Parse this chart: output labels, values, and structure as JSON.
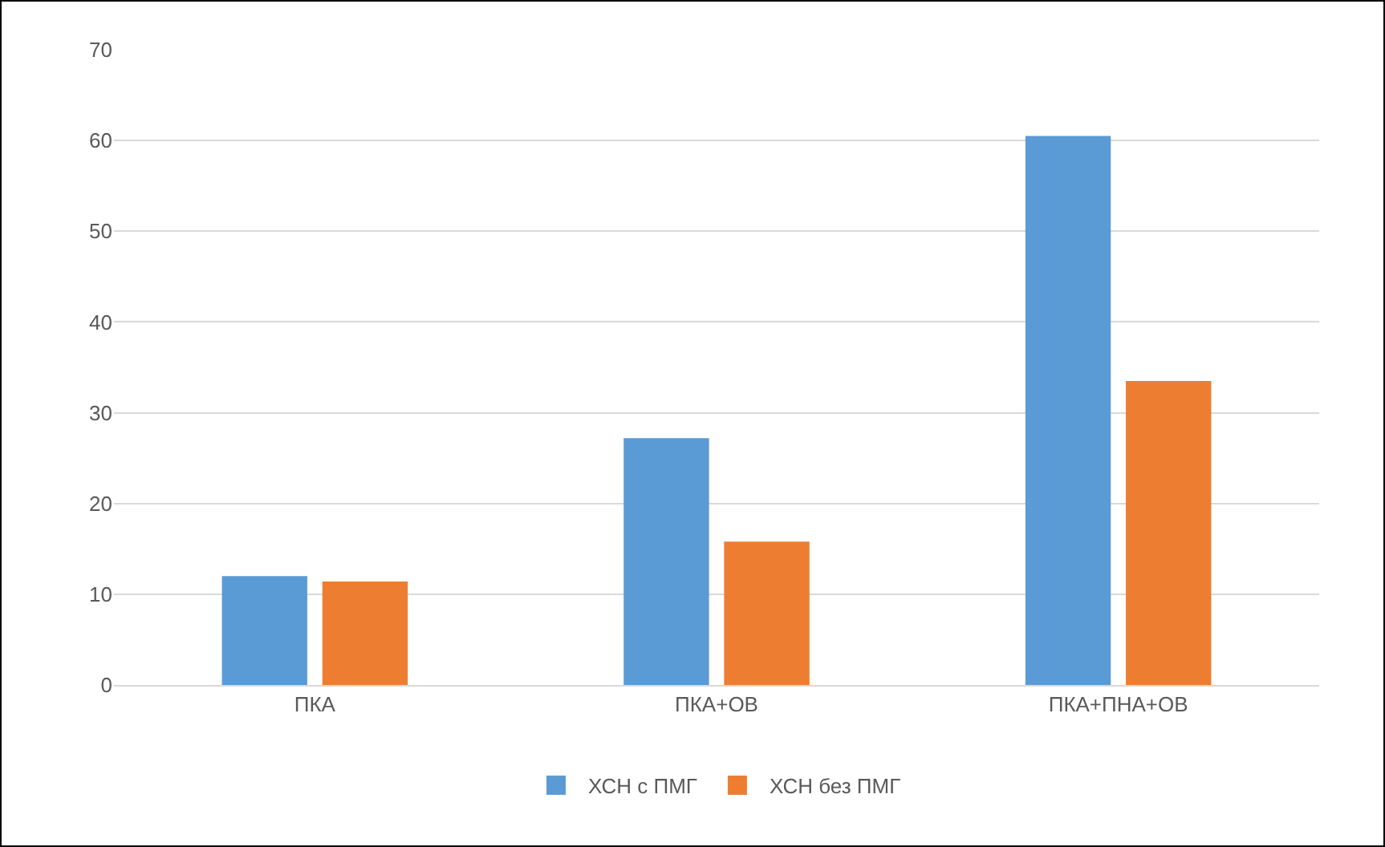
{
  "chart_data": {
    "type": "bar",
    "categories": [
      "ПКА",
      "ПКА+ОВ",
      "ПКА+ПНА+ОВ"
    ],
    "series": [
      {
        "name": "ХСН с ПМГ",
        "color": "#5b9bd5",
        "values": [
          12,
          27.2,
          60.5
        ]
      },
      {
        "name": "ХСН без ПМГ",
        "color": "#ed7d31",
        "values": [
          11.4,
          15.8,
          33.5
        ]
      }
    ],
    "ylim": [
      0,
      70
    ],
    "yticks": [
      0,
      10,
      20,
      30,
      40,
      50,
      60,
      70
    ],
    "grid": "y",
    "legend": "bottom"
  }
}
